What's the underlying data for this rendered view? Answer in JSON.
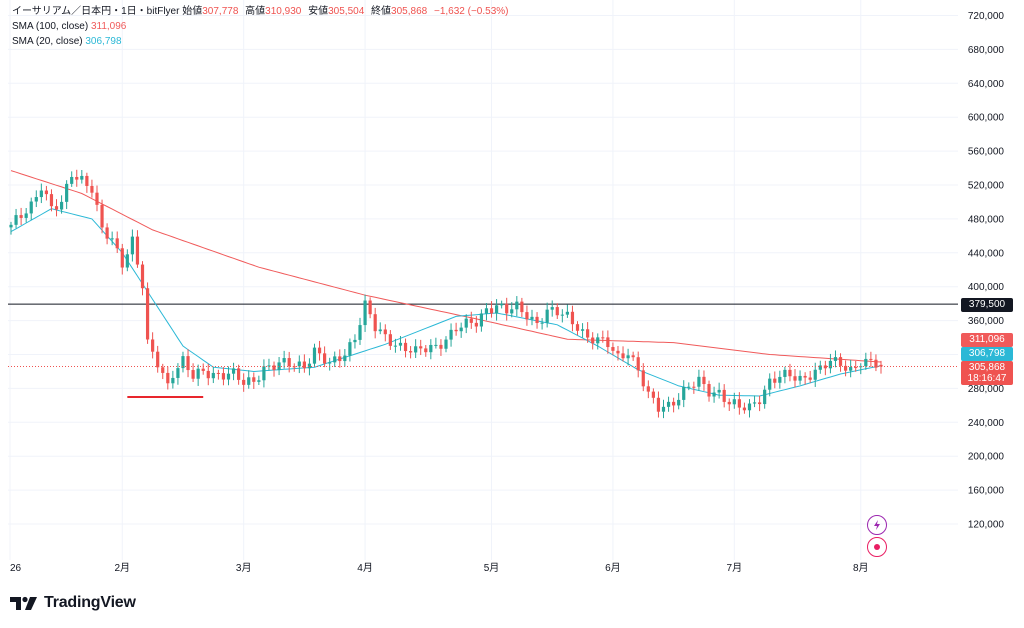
{
  "header": {
    "symbol": "イーサリアム／日本円・1日・bitFlyer",
    "open_label": "始値",
    "open": "307,778",
    "high_label": "高値",
    "high": "310,930",
    "low_label": "安値",
    "low": "305,504",
    "close_label": "終値",
    "close": "305,868",
    "change": "−1,632 (−0.53%)",
    "sma100_label": "SMA (100, close)",
    "sma100_value": "311,096",
    "sma20_label": "SMA (20, close)",
    "sma20_value": "306,798"
  },
  "tags": {
    "hline": "379,500",
    "sma100": "311,096",
    "sma20": "306,798",
    "last_price": "305,868",
    "countdown": "18:16:47"
  },
  "colors": {
    "up": "#26a69a",
    "down": "#ef5350",
    "sma100": "#f05a5a",
    "sma20": "#2bb8d6",
    "hline": "#131722",
    "marker": "#e8262d",
    "side_icon": "#9c27b0",
    "side_icon2": "#e91e63"
  },
  "brand": {
    "name": "TradingView"
  },
  "icons": {
    "logo": "tradingview-logo-icon",
    "flash": "lightning-icon",
    "record": "target-icon"
  },
  "chart_data": {
    "type": "candlestick",
    "ylim": [
      100000,
      730000
    ],
    "y_ticks": [
      120000,
      160000,
      200000,
      240000,
      280000,
      320000,
      360000,
      400000,
      440000,
      480000,
      520000,
      560000,
      600000,
      640000,
      680000,
      720000
    ],
    "y_tick_labels": [
      "120,000",
      "160,000",
      "200,000",
      "240,000",
      "280,000",
      "320,000",
      "360,000",
      "400,000",
      "440,000",
      "480,000",
      "520,000",
      "560,000",
      "600,000",
      "640,000",
      "680,000",
      "720,000"
    ],
    "x_labels": [
      "26",
      "2月",
      "3月",
      "4月",
      "5月",
      "6月",
      "7月",
      "8月"
    ],
    "horizontal_line": 379500,
    "sma100_waypoints": [
      [
        0,
        537000
      ],
      [
        14,
        510000
      ],
      [
        28,
        467000
      ],
      [
        49,
        423000
      ],
      [
        70,
        390000
      ],
      [
        92,
        362000
      ],
      [
        110,
        338000
      ],
      [
        131,
        334000
      ],
      [
        150,
        320000
      ],
      [
        172,
        311096
      ]
    ],
    "sma20_waypoints": [
      [
        0,
        465000
      ],
      [
        8,
        492000
      ],
      [
        16,
        480000
      ],
      [
        22,
        440000
      ],
      [
        28,
        385000
      ],
      [
        34,
        330000
      ],
      [
        40,
        305000
      ],
      [
        48,
        300000
      ],
      [
        60,
        305000
      ],
      [
        74,
        332000
      ],
      [
        88,
        365000
      ],
      [
        96,
        369000
      ],
      [
        108,
        355000
      ],
      [
        116,
        330000
      ],
      [
        124,
        302000
      ],
      [
        132,
        283000
      ],
      [
        140,
        272000
      ],
      [
        148,
        271000
      ],
      [
        156,
        283000
      ],
      [
        164,
        297000
      ],
      [
        172,
        306798
      ]
    ],
    "close_path": [
      [
        0,
        470000
      ],
      [
        4,
        498000
      ],
      [
        6,
        520000
      ],
      [
        8,
        490000
      ],
      [
        10,
        497000
      ],
      [
        12,
        535000
      ],
      [
        14,
        528000
      ],
      [
        16,
        515000
      ],
      [
        18,
        465000
      ],
      [
        20,
        455000
      ],
      [
        22,
        430000
      ],
      [
        24,
        455000
      ],
      [
        26,
        400000
      ],
      [
        27,
        330000
      ],
      [
        29,
        310000
      ],
      [
        31,
        285000
      ],
      [
        32,
        300000
      ],
      [
        34,
        312000
      ],
      [
        36,
        292000
      ],
      [
        38,
        300000
      ],
      [
        40,
        298000
      ],
      [
        44,
        296000
      ],
      [
        46,
        285000
      ],
      [
        48,
        290000
      ],
      [
        50,
        305000
      ],
      [
        54,
        308000
      ],
      [
        58,
        308000
      ],
      [
        60,
        325000
      ],
      [
        63,
        306000
      ],
      [
        66,
        322000
      ],
      [
        68,
        342000
      ],
      [
        70,
        378000
      ],
      [
        72,
        350000
      ],
      [
        74,
        340000
      ],
      [
        80,
        322000
      ],
      [
        84,
        330000
      ],
      [
        88,
        350000
      ],
      [
        92,
        358000
      ],
      [
        94,
        375000
      ],
      [
        96,
        378000
      ],
      [
        98,
        370000
      ],
      [
        100,
        375000
      ],
      [
        102,
        368000
      ],
      [
        104,
        358000
      ],
      [
        106,
        370000
      ],
      [
        108,
        368000
      ],
      [
        110,
        365000
      ],
      [
        112,
        355000
      ],
      [
        114,
        340000
      ],
      [
        116,
        335000
      ],
      [
        118,
        332000
      ],
      [
        120,
        318000
      ],
      [
        122,
        325000
      ],
      [
        124,
        300000
      ],
      [
        126,
        270000
      ],
      [
        128,
        258000
      ],
      [
        130,
        262000
      ],
      [
        132,
        270000
      ],
      [
        134,
        280000
      ],
      [
        136,
        288000
      ],
      [
        138,
        278000
      ],
      [
        140,
        276000
      ],
      [
        142,
        262000
      ],
      [
        144,
        256000
      ],
      [
        146,
        258000
      ],
      [
        148,
        270000
      ],
      [
        150,
        288000
      ],
      [
        152,
        292000
      ],
      [
        154,
        295000
      ],
      [
        156,
        292000
      ],
      [
        158,
        298000
      ],
      [
        160,
        302000
      ],
      [
        162,
        310000
      ],
      [
        164,
        310000
      ],
      [
        166,
        303000
      ],
      [
        168,
        312000
      ],
      [
        170,
        308000
      ],
      [
        172,
        305868
      ]
    ]
  }
}
